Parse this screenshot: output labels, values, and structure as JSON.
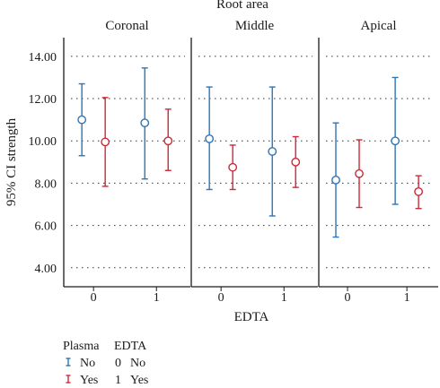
{
  "chart_data": {
    "type": "errorbar",
    "title": "Root area",
    "xlabel": "EDTA",
    "ylabel": "95% CI strength",
    "ylim": [
      3.1,
      14.8
    ],
    "yticks": [
      "4.00",
      "6.00",
      "8.00",
      "10.00",
      "12.00",
      "14.00"
    ],
    "ytick_values": [
      4,
      6,
      8,
      10,
      12,
      14
    ],
    "grid": true,
    "x_categories": [
      "0",
      "1"
    ],
    "facets": [
      {
        "name": "Coronal",
        "points": [
          {
            "edta": "0",
            "plasma": "No",
            "mean": 11.0,
            "lower": 9.3,
            "upper": 12.7
          },
          {
            "edta": "0",
            "plasma": "Yes",
            "mean": 9.95,
            "lower": 7.85,
            "upper": 12.05
          },
          {
            "edta": "1",
            "plasma": "No",
            "mean": 10.85,
            "lower": 8.2,
            "upper": 13.45
          },
          {
            "edta": "1",
            "plasma": "Yes",
            "mean": 10.0,
            "lower": 8.6,
            "upper": 11.5
          }
        ]
      },
      {
        "name": "Middle",
        "points": [
          {
            "edta": "0",
            "plasma": "No",
            "mean": 10.1,
            "lower": 7.7,
            "upper": 12.55
          },
          {
            "edta": "0",
            "plasma": "Yes",
            "mean": 8.75,
            "lower": 7.7,
            "upper": 9.8
          },
          {
            "edta": "1",
            "plasma": "No",
            "mean": 9.5,
            "lower": 6.45,
            "upper": 12.55
          },
          {
            "edta": "1",
            "plasma": "Yes",
            "mean": 9.0,
            "lower": 7.8,
            "upper": 10.2
          }
        ]
      },
      {
        "name": "Apical",
        "points": [
          {
            "edta": "0",
            "plasma": "No",
            "mean": 8.15,
            "lower": 5.45,
            "upper": 10.85
          },
          {
            "edta": "0",
            "plasma": "Yes",
            "mean": 8.45,
            "lower": 6.85,
            "upper": 10.05
          },
          {
            "edta": "1",
            "plasma": "No",
            "mean": 10.0,
            "lower": 7.0,
            "upper": 13.0
          },
          {
            "edta": "1",
            "plasma": "Yes",
            "mean": 7.6,
            "lower": 6.8,
            "upper": 8.35
          }
        ]
      }
    ],
    "legend": {
      "placement": "bottom-left",
      "header_plasma": "Plasma",
      "header_edta": "EDTA",
      "rows": [
        {
          "plasma": "No",
          "code": "0",
          "edta": "No",
          "color": "#2e75b6"
        },
        {
          "plasma": "Yes",
          "code": "1",
          "edta": "Yes",
          "color": "#cc2936"
        }
      ]
    },
    "colors": {
      "No": "#2e75b6",
      "Yes": "#cc2936"
    }
  }
}
